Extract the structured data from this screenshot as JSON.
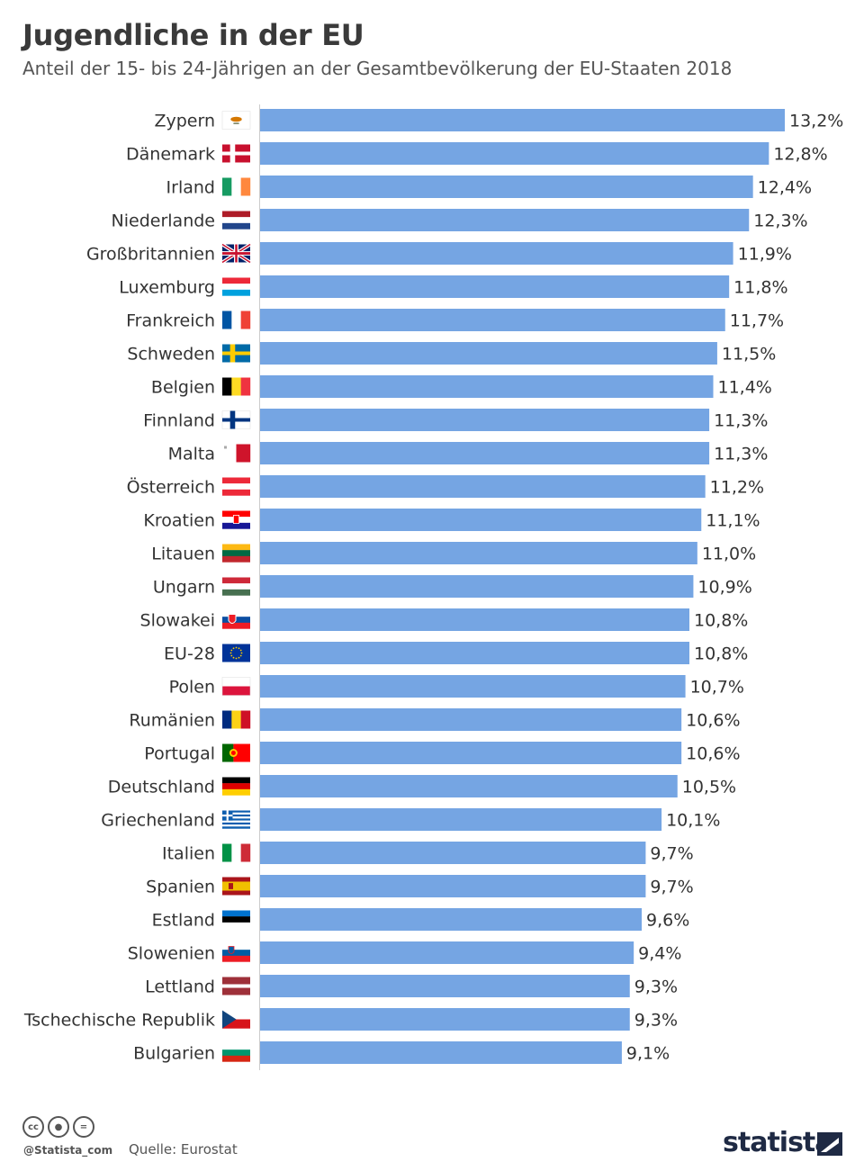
{
  "title": "Jugendliche in der EU",
  "subtitle": "Anteil der 15- bis 24-Jährigen an der Gesamtbevölkerung der EU-Staaten 2018",
  "footer": {
    "handle": "@Statista_com",
    "source": "Quelle: Eurostat",
    "brand": "statista",
    "icons": [
      "cc-icon",
      "by-icon",
      "nd-icon"
    ]
  },
  "colors": {
    "bar": "#75a5e3",
    "axis": "#cccccc"
  },
  "chart_data": {
    "type": "bar",
    "orientation": "horizontal",
    "unit": "%",
    "xlim": [
      0,
      13.2
    ],
    "grid": false,
    "categories": [
      "Zypern",
      "Dänemark",
      "Irland",
      "Niederlande",
      "Großbritannien",
      "Luxemburg",
      "Frankreich",
      "Schweden",
      "Belgien",
      "Finnland",
      "Malta",
      "Österreich",
      "Kroatien",
      "Litauen",
      "Ungarn",
      "Slowakei",
      "EU-28",
      "Polen",
      "Rumänien",
      "Portugal",
      "Deutschland",
      "Griechenland",
      "Italien",
      "Spanien",
      "Estland",
      "Slowenien",
      "Lettland",
      "Tschechische Republik",
      "Bulgarien"
    ],
    "values": [
      13.2,
      12.8,
      12.4,
      12.3,
      11.9,
      11.8,
      11.7,
      11.5,
      11.4,
      11.3,
      11.3,
      11.2,
      11.1,
      11.0,
      10.9,
      10.8,
      10.8,
      10.7,
      10.6,
      10.6,
      10.5,
      10.1,
      9.7,
      9.7,
      9.6,
      9.4,
      9.3,
      9.3,
      9.1
    ],
    "value_labels": [
      "13,2%",
      "12,8%",
      "12,4%",
      "12,3%",
      "11,9%",
      "11,8%",
      "11,7%",
      "11,5%",
      "11,4%",
      "11,3%",
      "11,3%",
      "11,2%",
      "11,1%",
      "11,0%",
      "10,9%",
      "10,8%",
      "10,8%",
      "10,7%",
      "10,6%",
      "10,6%",
      "10,5%",
      "10,1%",
      "9,7%",
      "9,7%",
      "9,6%",
      "9,4%",
      "9,3%",
      "9,3%",
      "9,1%"
    ],
    "flags": [
      "flag-cyprus-icon",
      "flag-denmark-icon",
      "flag-ireland-icon",
      "flag-netherlands-icon",
      "flag-uk-icon",
      "flag-luxembourg-icon",
      "flag-france-icon",
      "flag-sweden-icon",
      "flag-belgium-icon",
      "flag-finland-icon",
      "flag-malta-icon",
      "flag-austria-icon",
      "flag-croatia-icon",
      "flag-lithuania-icon",
      "flag-hungary-icon",
      "flag-slovakia-icon",
      "flag-eu-icon",
      "flag-poland-icon",
      "flag-romania-icon",
      "flag-portugal-icon",
      "flag-germany-icon",
      "flag-greece-icon",
      "flag-italy-icon",
      "flag-spain-icon",
      "flag-estonia-icon",
      "flag-slovenia-icon",
      "flag-latvia-icon",
      "flag-czechia-icon",
      "flag-bulgaria-icon"
    ]
  }
}
